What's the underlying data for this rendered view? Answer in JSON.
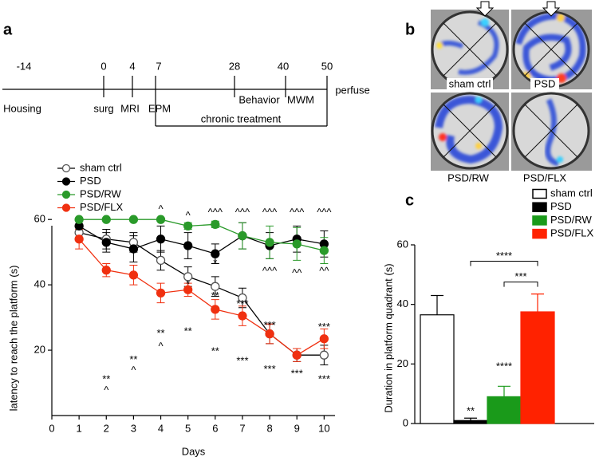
{
  "panel_labels": [
    "a",
    "b",
    "c"
  ],
  "timeline": {
    "ticks": [
      "-14",
      "0",
      "4",
      "7",
      "28",
      "40",
      "50"
    ],
    "events": [
      "Housing",
      "surg",
      "MRI",
      "EPM",
      "Behavior",
      "MWM",
      "perfuse"
    ],
    "treatment": "chronic treatment"
  },
  "heatmaps": [
    "sham ctrl",
    "PSD",
    "PSD/RW",
    "PSD/FLX"
  ],
  "chart_data": [
    {
      "type": "line",
      "xlabel": "Days",
      "ylabel": "latency to reach the platform (s)",
      "x": [
        1,
        2,
        3,
        4,
        5,
        6,
        7,
        8,
        9,
        10
      ],
      "xlim": [
        0,
        10.4
      ],
      "xticks": [
        0,
        1,
        2,
        3,
        4,
        5,
        6,
        7,
        8,
        9,
        10
      ],
      "ylim": [
        0,
        62
      ],
      "yticks": [
        20,
        40,
        60
      ],
      "series": [
        {
          "name": "sham ctrl",
          "color": "#555555",
          "fill": "#ffffff",
          "values": [
            56,
            54,
            53,
            47.5,
            42.5,
            39.5,
            36,
            25,
            18.5,
            18.5
          ],
          "errors": [
            2,
            3,
            3,
            3,
            3,
            3,
            3,
            3,
            2,
            3
          ]
        },
        {
          "name": "PSD",
          "color": "#000000",
          "fill": "#000000",
          "values": [
            58,
            53,
            51,
            54,
            52,
            49.5,
            55,
            52,
            54,
            52.5
          ],
          "errors": [
            2,
            3,
            4,
            4,
            4,
            3,
            4,
            4,
            4,
            4
          ]
        },
        {
          "name": "PSD/RW",
          "color": "#2a9a2a",
          "fill": "#2a9a2a",
          "values": [
            60,
            60,
            60,
            60,
            58,
            58.5,
            55,
            53,
            52.5,
            50.5
          ],
          "errors": [
            0,
            0,
            0,
            0,
            1,
            1,
            4,
            5,
            5,
            4
          ]
        },
        {
          "name": "PSD/FLX",
          "color": "#f03010",
          "fill": "#f03010",
          "values": [
            54,
            44.5,
            43,
            37.5,
            38.5,
            32.5,
            30.5,
            25,
            18.5,
            23.5
          ],
          "errors": [
            3,
            2,
            3,
            3,
            2,
            3,
            3,
            3,
            2,
            3
          ]
        }
      ],
      "annotations": [
        {
          "text": "**",
          "x": 2,
          "y": 11
        },
        {
          "text": "^",
          "x": 2,
          "y": 7.5
        },
        {
          "text": "**",
          "x": 3,
          "y": 17
        },
        {
          "text": "^",
          "x": 3,
          "y": 13.7
        },
        {
          "text": "^",
          "x": 4,
          "y": 63
        },
        {
          "text": "**",
          "x": 4,
          "y": 25
        },
        {
          "text": "^",
          "x": 4,
          "y": 21
        },
        {
          "text": "^",
          "x": 5,
          "y": 61
        },
        {
          "text": "*",
          "x": 5,
          "y": 40
        },
        {
          "text": "**",
          "x": 5,
          "y": 25.6
        },
        {
          "text": "^^^",
          "x": 6,
          "y": 62
        },
        {
          "text": "*",
          "x": 6,
          "y": 46.5
        },
        {
          "text": "**",
          "x": 6,
          "y": 36.5
        },
        {
          "text": "**",
          "x": 6,
          "y": 19.5
        },
        {
          "text": "^^^",
          "x": 7,
          "y": 62
        },
        {
          "text": "***",
          "x": 7,
          "y": 34
        },
        {
          "text": "***",
          "x": 7,
          "y": 16.6
        },
        {
          "text": "^^^",
          "x": 8,
          "y": 62
        },
        {
          "text": "^^^",
          "x": 8,
          "y": 44
        },
        {
          "text": "***",
          "x": 8,
          "y": 27.5
        },
        {
          "text": "***",
          "x": 8,
          "y": 14
        },
        {
          "text": "^^^",
          "x": 9,
          "y": 62
        },
        {
          "text": "^^",
          "x": 9,
          "y": 43.4
        },
        {
          "text": "***",
          "x": 9,
          "y": 12.7
        },
        {
          "text": "^^^",
          "x": 10,
          "y": 62
        },
        {
          "text": "^^",
          "x": 10,
          "y": 44
        },
        {
          "text": "***",
          "x": 10,
          "y": 27
        },
        {
          "text": "***",
          "x": 10,
          "y": 11
        }
      ]
    },
    {
      "type": "bar",
      "ylabel": "Duration in platform quadrant (s)",
      "categories": [
        "sham ctrl",
        "PSD",
        "PSD/RW",
        "PSD/FLX"
      ],
      "values": [
        36.5,
        1,
        9,
        37.5
      ],
      "errors": [
        6.5,
        0.8,
        3.5,
        6
      ],
      "colors": [
        "#ffffff",
        "#000000",
        "#1a9a1a",
        "#ff2200"
      ],
      "ylim": [
        0,
        60
      ],
      "yticks": [
        0,
        20,
        40,
        60
      ],
      "annotations": [
        {
          "text": "**",
          "index": 1,
          "y": 4
        },
        {
          "text": "****",
          "index": 2,
          "y": 19
        }
      ],
      "comparisons": [
        {
          "from": 1,
          "to": 3,
          "label": "****",
          "y": 54.5
        },
        {
          "from": 2,
          "to": 3,
          "label": "***",
          "y": 47.5
        }
      ]
    }
  ]
}
